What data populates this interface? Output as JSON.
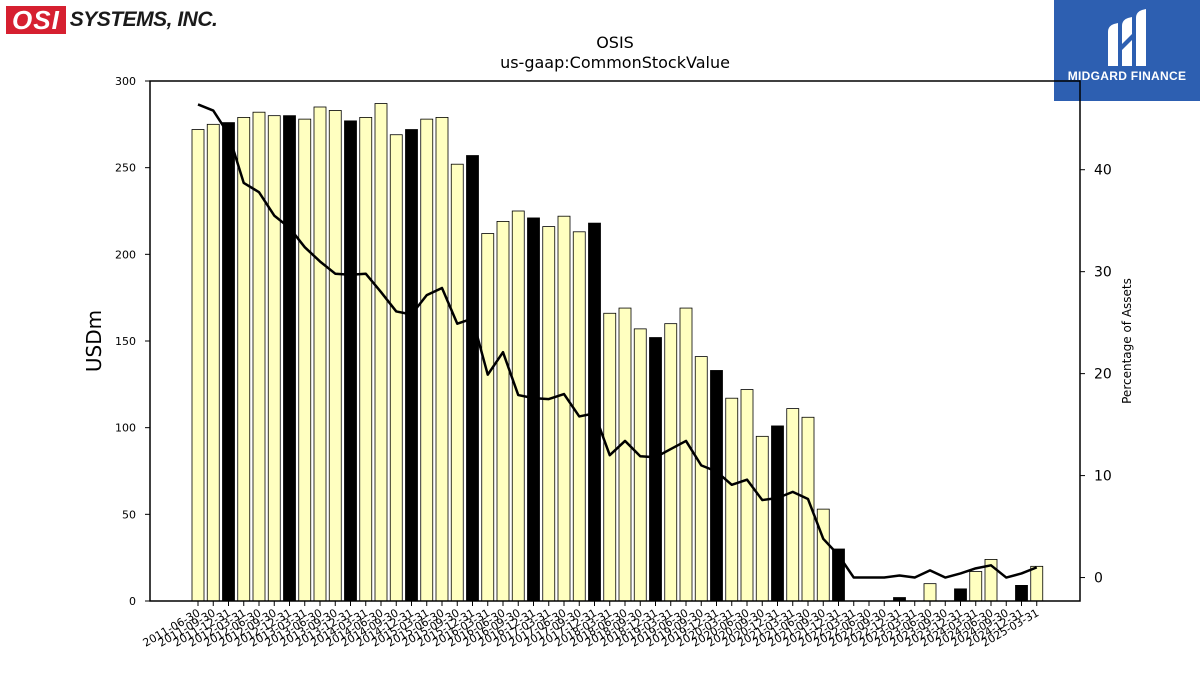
{
  "logos": {
    "left_brand": "OSI",
    "left_rest": "SYSTEMS, INC.",
    "right_brand": "MIDGARD FINANCE"
  },
  "chart_data": {
    "type": "bar",
    "title": "OSIS",
    "subtitle": "us-gaap:CommonStockValue",
    "ylabel": "USDm",
    "y2label": "Percentage of Assets",
    "ylim": [
      0,
      300
    ],
    "y2lim": [
      -2.3,
      48.7
    ],
    "yticks": [
      0,
      50,
      100,
      150,
      200,
      250,
      300
    ],
    "y2ticks": [
      0,
      10,
      20,
      30,
      40
    ],
    "categories": [
      "2011-06-30",
      "2011-09-30",
      "2011-12-31",
      "2012-03-31",
      "2012-06-30",
      "2012-09-30",
      "2012-12-31",
      "2013-03-31",
      "2013-06-30",
      "2013-09-30",
      "2013-12-31",
      "2014-03-31",
      "2014-06-30",
      "2014-09-30",
      "2014-12-31",
      "2015-03-31",
      "2015-06-30",
      "2015-09-30",
      "2015-12-31",
      "2016-03-31",
      "2016-06-30",
      "2016-09-30",
      "2016-12-31",
      "2017-03-31",
      "2017-06-30",
      "2017-09-30",
      "2017-12-31",
      "2018-03-31",
      "2018-06-30",
      "2018-09-30",
      "2018-12-31",
      "2019-03-31",
      "2019-06-30",
      "2019-09-30",
      "2019-12-31",
      "2020-03-31",
      "2020-06-30",
      "2020-09-30",
      "2020-12-31",
      "2021-03-31",
      "2021-06-30",
      "2021-09-30",
      "2021-12-31",
      "2022-03-31",
      "2022-06-30",
      "2022-09-30",
      "2022-12-31",
      "2023-03-31",
      "2023-06-30",
      "2023-09-30",
      "2023-12-31",
      "2024-03-31",
      "2024-06-30",
      "2024-09-30",
      "2024-12-31",
      "2025-03-31"
    ],
    "series": [
      {
        "values": [
          272,
          275,
          276,
          279,
          282,
          280,
          280,
          278,
          285,
          283,
          277,
          279,
          287,
          269,
          272,
          278,
          279,
          252,
          257,
          212,
          219,
          225,
          221,
          216,
          222,
          213,
          218,
          166,
          169,
          157,
          152,
          160,
          169,
          141,
          133,
          117,
          122,
          95,
          101,
          111,
          106,
          53,
          30,
          0,
          0,
          0,
          2,
          0,
          10,
          0,
          7,
          17,
          24,
          0,
          9,
          20
        ],
        "highlight": [
          false,
          false,
          true,
          false,
          false,
          false,
          true,
          false,
          false,
          false,
          true,
          false,
          false,
          false,
          true,
          false,
          false,
          false,
          true,
          false,
          false,
          false,
          true,
          false,
          false,
          false,
          true,
          false,
          false,
          false,
          true,
          false,
          false,
          false,
          true,
          false,
          false,
          false,
          true,
          false,
          false,
          false,
          true,
          false,
          false,
          false,
          true,
          false,
          false,
          false,
          true,
          false,
          false,
          false,
          true,
          false
        ],
        "fill_color": "#ffffc0",
        "highlight_color": "#000000"
      },
      {
        "axis": "right",
        "kind": "line",
        "values": [
          46.4,
          45.8,
          43.5,
          38.7,
          37.8,
          35.5,
          34.3,
          32.4,
          31.0,
          29.8,
          29.7,
          29.8,
          28.0,
          26.1,
          25.8,
          27.7,
          28.4,
          24.9,
          25.4,
          19.9,
          22.1,
          17.9,
          17.6,
          17.5,
          18.0,
          15.8,
          16.1,
          12.0,
          13.4,
          11.9,
          11.8,
          12.6,
          13.4,
          11.0,
          10.4,
          9.1,
          9.6,
          7.6,
          7.8,
          8.4,
          7.7,
          3.8,
          2.2,
          0.0,
          0.0,
          0.0,
          0.2,
          0.0,
          0.7,
          0.0,
          0.4,
          0.9,
          1.2,
          0.0,
          0.4,
          1.0
        ],
        "color": "#000000"
      }
    ],
    "grid": false
  }
}
